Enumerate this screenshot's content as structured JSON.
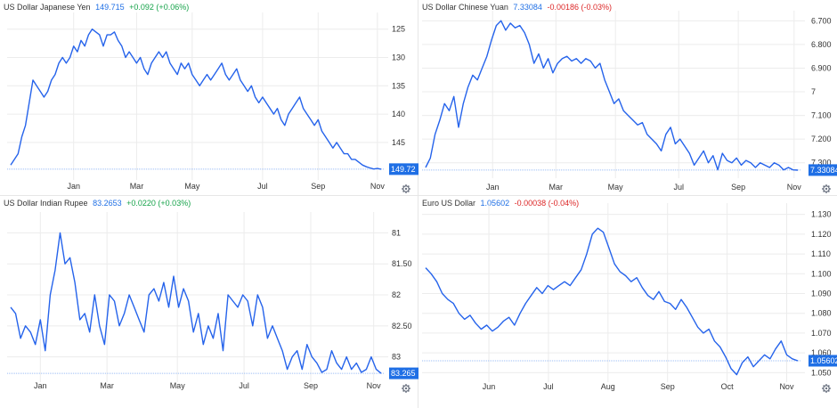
{
  "colors": {
    "line": "#2563eb",
    "badge": "#1f6fe5",
    "positive": "#16a34a",
    "negative": "#dc2626",
    "grid": "#ececec",
    "refline": "#9bbcf5"
  },
  "icons": {
    "settings": "gear-icon"
  },
  "chart_data": [
    {
      "type": "line",
      "title": "US Dollar Japanese Yen",
      "price": "149.715",
      "change": "+0.092 (+0.06%)",
      "change_direction": "positive",
      "badge": "149.72",
      "current_value": 149.72,
      "x_ticks": [
        "Jan",
        "Mar",
        "May",
        "Jul",
        "Sep",
        "Nov"
      ],
      "y_ticks": [
        "125",
        "130",
        "135",
        "140",
        "145"
      ],
      "y_tick_values": [
        125,
        130,
        135,
        140,
        145
      ],
      "ylim": [
        123,
        151
      ],
      "y_inverted": true,
      "grid": true,
      "points": [
        [
          0,
          149
        ],
        [
          2,
          148
        ],
        [
          4,
          147
        ],
        [
          6,
          144
        ],
        [
          8,
          142
        ],
        [
          10,
          138
        ],
        [
          12,
          134
        ],
        [
          14,
          135
        ],
        [
          16,
          136
        ],
        [
          18,
          137
        ],
        [
          20,
          136
        ],
        [
          22,
          134
        ],
        [
          24,
          133
        ],
        [
          26,
          131
        ],
        [
          28,
          130
        ],
        [
          30,
          131
        ],
        [
          32,
          130
        ],
        [
          34,
          128
        ],
        [
          36,
          129
        ],
        [
          38,
          127
        ],
        [
          40,
          128
        ],
        [
          42,
          126
        ],
        [
          44,
          125
        ],
        [
          46,
          125.5
        ],
        [
          48,
          126
        ],
        [
          50,
          128
        ],
        [
          52,
          126
        ],
        [
          54,
          126
        ],
        [
          56,
          125.5
        ],
        [
          58,
          127
        ],
        [
          60,
          128
        ],
        [
          62,
          130
        ],
        [
          64,
          129
        ],
        [
          66,
          130
        ],
        [
          68,
          131
        ],
        [
          70,
          130
        ],
        [
          72,
          132
        ],
        [
          74,
          133
        ],
        [
          76,
          131
        ],
        [
          78,
          130
        ],
        [
          80,
          129
        ],
        [
          82,
          130
        ],
        [
          84,
          129
        ],
        [
          86,
          131
        ],
        [
          88,
          132
        ],
        [
          90,
          133
        ],
        [
          92,
          131
        ],
        [
          94,
          132
        ],
        [
          96,
          131
        ],
        [
          98,
          133
        ],
        [
          100,
          134
        ],
        [
          102,
          135
        ],
        [
          104,
          134
        ],
        [
          106,
          133
        ],
        [
          108,
          134
        ],
        [
          110,
          133
        ],
        [
          112,
          132
        ],
        [
          114,
          131
        ],
        [
          116,
          133
        ],
        [
          118,
          134
        ],
        [
          120,
          133
        ],
        [
          122,
          132
        ],
        [
          124,
          134
        ],
        [
          126,
          135
        ],
        [
          128,
          136
        ],
        [
          130,
          135
        ],
        [
          132,
          137
        ],
        [
          134,
          138
        ],
        [
          136,
          137
        ],
        [
          138,
          138
        ],
        [
          140,
          139
        ],
        [
          142,
          140
        ],
        [
          144,
          139
        ],
        [
          146,
          141
        ],
        [
          148,
          142
        ],
        [
          150,
          140
        ],
        [
          152,
          139
        ],
        [
          154,
          138
        ],
        [
          156,
          137
        ],
        [
          158,
          139
        ],
        [
          160,
          140
        ],
        [
          162,
          141
        ],
        [
          164,
          142
        ],
        [
          166,
          141
        ],
        [
          168,
          143
        ],
        [
          170,
          144
        ],
        [
          172,
          145
        ],
        [
          174,
          146
        ],
        [
          176,
          145
        ],
        [
          178,
          146
        ],
        [
          180,
          147
        ],
        [
          182,
          147
        ],
        [
          184,
          148
        ],
        [
          186,
          148
        ],
        [
          188,
          148.5
        ],
        [
          190,
          149
        ],
        [
          192,
          149.3
        ],
        [
          194,
          149.5
        ],
        [
          196,
          149.7
        ],
        [
          198,
          149.6
        ],
        [
          200,
          149.72
        ]
      ]
    },
    {
      "type": "line",
      "title": "US Dollar Chinese Yuan",
      "price": "7.33084",
      "change": "-0.00186 (-0.03%)",
      "change_direction": "negative",
      "badge": "7.33084",
      "current_value": 7.33084,
      "x_ticks": [
        "Jan",
        "Mar",
        "May",
        "Jul",
        "Sep",
        "Nov"
      ],
      "y_ticks": [
        "6.700",
        "6.800",
        "6.900",
        "7",
        "7.100",
        "7.200",
        "7.300"
      ],
      "y_tick_values": [
        6.7,
        6.8,
        6.9,
        7.0,
        7.1,
        7.2,
        7.3
      ],
      "ylim": [
        6.68,
        7.35
      ],
      "y_inverted": true,
      "grid": true,
      "points": [
        [
          0,
          7.32
        ],
        [
          2,
          7.28
        ],
        [
          4,
          7.18
        ],
        [
          6,
          7.12
        ],
        [
          8,
          7.05
        ],
        [
          10,
          7.08
        ],
        [
          12,
          7.02
        ],
        [
          14,
          7.15
        ],
        [
          16,
          7.05
        ],
        [
          18,
          6.98
        ],
        [
          20,
          6.93
        ],
        [
          22,
          6.95
        ],
        [
          24,
          6.9
        ],
        [
          26,
          6.85
        ],
        [
          28,
          6.78
        ],
        [
          30,
          6.72
        ],
        [
          32,
          6.7
        ],
        [
          34,
          6.74
        ],
        [
          36,
          6.71
        ],
        [
          38,
          6.73
        ],
        [
          40,
          6.72
        ],
        [
          42,
          6.75
        ],
        [
          44,
          6.8
        ],
        [
          46,
          6.88
        ],
        [
          48,
          6.84
        ],
        [
          50,
          6.9
        ],
        [
          52,
          6.86
        ],
        [
          54,
          6.92
        ],
        [
          56,
          6.88
        ],
        [
          58,
          6.86
        ],
        [
          60,
          6.85
        ],
        [
          62,
          6.87
        ],
        [
          64,
          6.86
        ],
        [
          66,
          6.88
        ],
        [
          68,
          6.86
        ],
        [
          70,
          6.87
        ],
        [
          72,
          6.9
        ],
        [
          74,
          6.88
        ],
        [
          76,
          6.95
        ],
        [
          78,
          7.0
        ],
        [
          80,
          7.05
        ],
        [
          82,
          7.03
        ],
        [
          84,
          7.08
        ],
        [
          86,
          7.1
        ],
        [
          88,
          7.12
        ],
        [
          90,
          7.14
        ],
        [
          92,
          7.13
        ],
        [
          94,
          7.18
        ],
        [
          96,
          7.2
        ],
        [
          98,
          7.22
        ],
        [
          100,
          7.25
        ],
        [
          102,
          7.18
        ],
        [
          104,
          7.15
        ],
        [
          106,
          7.22
        ],
        [
          108,
          7.2
        ],
        [
          110,
          7.23
        ],
        [
          112,
          7.26
        ],
        [
          114,
          7.31
        ],
        [
          116,
          7.28
        ],
        [
          118,
          7.25
        ],
        [
          120,
          7.3
        ],
        [
          122,
          7.27
        ],
        [
          124,
          7.33
        ],
        [
          126,
          7.26
        ],
        [
          128,
          7.29
        ],
        [
          130,
          7.3
        ],
        [
          132,
          7.28
        ],
        [
          134,
          7.31
        ],
        [
          136,
          7.29
        ],
        [
          138,
          7.3
        ],
        [
          140,
          7.32
        ],
        [
          142,
          7.3
        ],
        [
          144,
          7.31
        ],
        [
          146,
          7.32
        ],
        [
          148,
          7.3
        ],
        [
          150,
          7.31
        ],
        [
          152,
          7.33
        ],
        [
          154,
          7.32
        ],
        [
          156,
          7.33
        ],
        [
          158,
          7.331
        ]
      ]
    },
    {
      "type": "line",
      "title": "US Dollar Indian Rupee",
      "price": "83.2653",
      "change": "+0.0220 (+0.03%)",
      "change_direction": "positive",
      "badge": "83.265",
      "current_value": 83.265,
      "x_ticks": [
        "Jan",
        "Mar",
        "May",
        "Jul",
        "Sep",
        "Nov"
      ],
      "y_ticks": [
        "81",
        "81.50",
        "82",
        "82.50",
        "83"
      ],
      "y_tick_values": [
        81.0,
        81.5,
        82.0,
        82.5,
        83.0
      ],
      "ylim": [
        80.75,
        83.35
      ],
      "y_inverted": true,
      "grid": true,
      "points": [
        [
          0,
          82.2
        ],
        [
          2,
          82.3
        ],
        [
          4,
          82.7
        ],
        [
          6,
          82.5
        ],
        [
          8,
          82.6
        ],
        [
          10,
          82.8
        ],
        [
          12,
          82.4
        ],
        [
          14,
          82.9
        ],
        [
          16,
          82.0
        ],
        [
          18,
          81.6
        ],
        [
          20,
          81.0
        ],
        [
          22,
          81.5
        ],
        [
          24,
          81.4
        ],
        [
          26,
          81.8
        ],
        [
          28,
          82.4
        ],
        [
          30,
          82.3
        ],
        [
          32,
          82.6
        ],
        [
          34,
          82.0
        ],
        [
          36,
          82.5
        ],
        [
          38,
          82.8
        ],
        [
          40,
          82.0
        ],
        [
          42,
          82.1
        ],
        [
          44,
          82.5
        ],
        [
          46,
          82.3
        ],
        [
          48,
          82.0
        ],
        [
          50,
          82.2
        ],
        [
          52,
          82.4
        ],
        [
          54,
          82.6
        ],
        [
          56,
          82.0
        ],
        [
          58,
          81.9
        ],
        [
          60,
          82.1
        ],
        [
          62,
          81.8
        ],
        [
          64,
          82.2
        ],
        [
          66,
          81.7
        ],
        [
          68,
          82.2
        ],
        [
          70,
          81.9
        ],
        [
          72,
          82.1
        ],
        [
          74,
          82.6
        ],
        [
          76,
          82.3
        ],
        [
          78,
          82.8
        ],
        [
          80,
          82.5
        ],
        [
          82,
          82.7
        ],
        [
          84,
          82.3
        ],
        [
          86,
          82.9
        ],
        [
          88,
          82.0
        ],
        [
          90,
          82.1
        ],
        [
          92,
          82.2
        ],
        [
          94,
          82.0
        ],
        [
          96,
          82.1
        ],
        [
          98,
          82.5
        ],
        [
          100,
          82.0
        ],
        [
          102,
          82.2
        ],
        [
          104,
          82.7
        ],
        [
          106,
          82.5
        ],
        [
          108,
          82.7
        ],
        [
          110,
          82.9
        ],
        [
          112,
          83.2
        ],
        [
          114,
          83.0
        ],
        [
          116,
          82.9
        ],
        [
          118,
          83.2
        ],
        [
          120,
          82.8
        ],
        [
          122,
          83.0
        ],
        [
          124,
          83.1
        ],
        [
          126,
          83.25
        ],
        [
          128,
          83.2
        ],
        [
          130,
          82.9
        ],
        [
          132,
          83.1
        ],
        [
          134,
          83.2
        ],
        [
          136,
          83.0
        ],
        [
          138,
          83.2
        ],
        [
          140,
          83.1
        ],
        [
          142,
          83.25
        ],
        [
          144,
          83.2
        ],
        [
          146,
          83.0
        ],
        [
          148,
          83.2
        ],
        [
          150,
          83.265
        ]
      ]
    },
    {
      "type": "line",
      "title": "Euro US Dollar",
      "price": "1.05602",
      "change": "-0.00038 (-0.04%)",
      "change_direction": "negative",
      "badge": "1.05602",
      "current_value": 1.05602,
      "x_ticks": [
        "Jun",
        "Jul",
        "Aug",
        "Sep",
        "Oct",
        "Nov"
      ],
      "y_ticks": [
        "1.130",
        "1.120",
        "1.110",
        "1.100",
        "1.090",
        "1.080",
        "1.070",
        "1.060",
        "1.050"
      ],
      "y_tick_values": [
        1.13,
        1.12,
        1.11,
        1.1,
        1.09,
        1.08,
        1.07,
        1.06,
        1.05
      ],
      "ylim": [
        1.047,
        1.133
      ],
      "y_inverted": false,
      "grid": true,
      "points": [
        [
          0,
          1.103
        ],
        [
          2,
          1.1
        ],
        [
          4,
          1.096
        ],
        [
          6,
          1.09
        ],
        [
          8,
          1.087
        ],
        [
          10,
          1.085
        ],
        [
          12,
          1.08
        ],
        [
          14,
          1.077
        ],
        [
          16,
          1.079
        ],
        [
          18,
          1.075
        ],
        [
          20,
          1.072
        ],
        [
          22,
          1.074
        ],
        [
          24,
          1.071
        ],
        [
          26,
          1.073
        ],
        [
          28,
          1.076
        ],
        [
          30,
          1.078
        ],
        [
          32,
          1.074
        ],
        [
          34,
          1.08
        ],
        [
          36,
          1.085
        ],
        [
          38,
          1.089
        ],
        [
          40,
          1.093
        ],
        [
          42,
          1.09
        ],
        [
          44,
          1.094
        ],
        [
          46,
          1.092
        ],
        [
          48,
          1.094
        ],
        [
          50,
          1.096
        ],
        [
          52,
          1.094
        ],
        [
          54,
          1.098
        ],
        [
          56,
          1.102
        ],
        [
          58,
          1.11
        ],
        [
          60,
          1.12
        ],
        [
          62,
          1.123
        ],
        [
          64,
          1.121
        ],
        [
          66,
          1.113
        ],
        [
          68,
          1.105
        ],
        [
          70,
          1.101
        ],
        [
          72,
          1.099
        ],
        [
          74,
          1.096
        ],
        [
          76,
          1.098
        ],
        [
          78,
          1.093
        ],
        [
          80,
          1.089
        ],
        [
          82,
          1.087
        ],
        [
          84,
          1.091
        ],
        [
          86,
          1.086
        ],
        [
          88,
          1.085
        ],
        [
          90,
          1.082
        ],
        [
          92,
          1.087
        ],
        [
          94,
          1.083
        ],
        [
          96,
          1.078
        ],
        [
          98,
          1.073
        ],
        [
          100,
          1.07
        ],
        [
          102,
          1.072
        ],
        [
          104,
          1.066
        ],
        [
          106,
          1.063
        ],
        [
          108,
          1.058
        ],
        [
          110,
          1.052
        ],
        [
          112,
          1.049
        ],
        [
          114,
          1.055
        ],
        [
          116,
          1.058
        ],
        [
          118,
          1.053
        ],
        [
          120,
          1.056
        ],
        [
          122,
          1.059
        ],
        [
          124,
          1.057
        ],
        [
          126,
          1.062
        ],
        [
          128,
          1.066
        ],
        [
          130,
          1.059
        ],
        [
          132,
          1.057
        ],
        [
          134,
          1.056
        ]
      ]
    }
  ]
}
